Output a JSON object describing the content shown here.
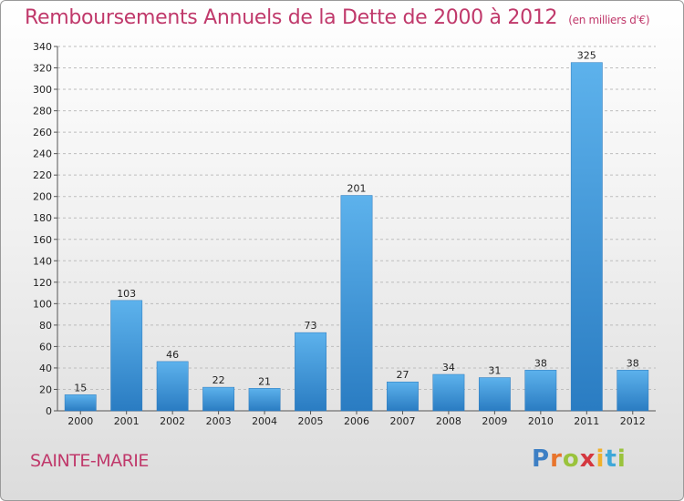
{
  "chart_data": {
    "type": "bar",
    "title": "Remboursements Annuels de la Dette de 2000 à 2012",
    "subtitle": "(en milliers d'€)",
    "categories": [
      "2000",
      "2001",
      "2002",
      "2003",
      "2004",
      "2005",
      "2006",
      "2007",
      "2008",
      "2009",
      "2010",
      "2011",
      "2012"
    ],
    "values": [
      15,
      103,
      46,
      22,
      21,
      73,
      201,
      27,
      34,
      31,
      38,
      325,
      38
    ],
    "ylim": [
      0,
      340
    ],
    "yticks": [
      0,
      20,
      40,
      60,
      80,
      100,
      120,
      140,
      160,
      180,
      200,
      220,
      240,
      260,
      280,
      300,
      320,
      340
    ],
    "grid": true,
    "bar_color": "#3a8fd6"
  },
  "commune": "SAINTE-MARIE",
  "logo_text": "Proxiti",
  "colors": {
    "title": "#c0396b",
    "bar_light": "#5db2ec",
    "bar_dark": "#2a7cc2"
  }
}
